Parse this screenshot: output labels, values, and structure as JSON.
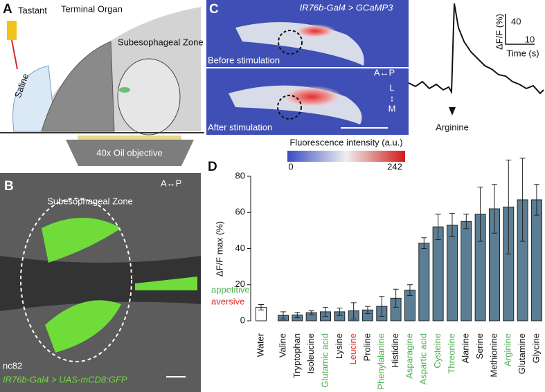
{
  "panels": {
    "a": {
      "label": "A",
      "tastant": "Tastant",
      "terminal_organ": "Terminal Organ",
      "saline": "Saline",
      "zone": "Subesophageal Zone",
      "objective": "40x Oil objective"
    },
    "b": {
      "label": "B",
      "axis": "A↔P",
      "zone": "Subesophageal Zone",
      "stain": "nc82",
      "genotype": "IR76b-Gal4 > UAS-mCD8:GFP"
    },
    "c": {
      "label": "C",
      "genotype": "IR76b-Gal4 > GCaMP3",
      "before": "Before stimulation",
      "after": "After stimulation",
      "ap": "A↔P",
      "l": "L",
      "lm": "↕",
      "m": "M",
      "stimulus": "Arginine",
      "scale_y": "40",
      "scale_y_label": "ΔF/F (%)",
      "scale_x": "10",
      "scale_x_label": "Time (s)",
      "colorbar_title": "Fluorescence intensity (a.u.)",
      "colorbar_min": "0",
      "colorbar_max": "242"
    }
  },
  "chart_data": {
    "type": "bar",
    "panel_label": "D",
    "y_label": "ΔF/F max (%)",
    "categories": [
      "Water",
      "Valine",
      "Tryptophan",
      "Isoleucine",
      "Glutamic acid",
      "Lysine",
      "Leucine",
      "Proline",
      "Phenylalanine",
      "Histidine",
      "Asparagine",
      "Aspartic acid",
      "Cysteine",
      "Threonine",
      "Alanine",
      "Serine",
      "Methionine",
      "Arginine",
      "Glutamine",
      "Glycine"
    ],
    "values": [
      7.5,
      3,
      3.2,
      4.5,
      5,
      5,
      5.5,
      6,
      8,
      12.5,
      17,
      43,
      52,
      53,
      55,
      59,
      62,
      63,
      67,
      67
    ],
    "errors": [
      1.5,
      2,
      1.5,
      1,
      2.5,
      2,
      4.5,
      2,
      5.5,
      5,
      3,
      3,
      7,
      6.5,
      4,
      15,
      13.5,
      26,
      23,
      8.5
    ],
    "bar_colors": [
      "#ffffff",
      "#5b7e95",
      "#5b7e95",
      "#5b7e95",
      "#5b7e95",
      "#5b7e95",
      "#5b7e95",
      "#5b7e95",
      "#5b7e95",
      "#5b7e95",
      "#5b7e95",
      "#5b7e95",
      "#5b7e95",
      "#5b7e95",
      "#5b7e95",
      "#5b7e95",
      "#5b7e95",
      "#5b7e95",
      "#5b7e95",
      "#5b7e95"
    ],
    "label_colors": [
      "#111111",
      "#111111",
      "#111111",
      "#111111",
      "#4caf50",
      "#111111",
      "#e0302a",
      "#111111",
      "#4caf50",
      "#111111",
      "#4caf50",
      "#4caf50",
      "#4caf50",
      "#4caf50",
      "#111111",
      "#111111",
      "#111111",
      "#4caf50",
      "#111111",
      "#111111"
    ],
    "legend": [
      {
        "name": "appetitive",
        "color": "#4caf50"
      },
      {
        "name": "aversive",
        "color": "#e0302a"
      }
    ],
    "ylim": [
      0,
      80
    ],
    "yticks": [
      0,
      20,
      40,
      60,
      80
    ]
  }
}
